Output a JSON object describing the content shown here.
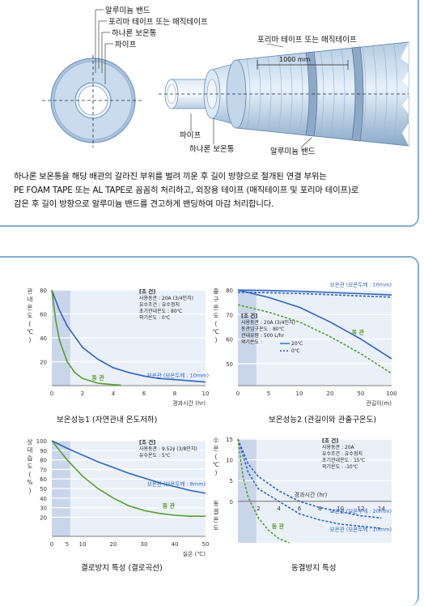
{
  "diagram": {
    "left_labels": [
      "알루미늄 밴드",
      "포리마 테이프 또는 매직테이프",
      "하나론 보온통",
      "파이프"
    ],
    "right_top_label": "포리마 테이프 또는 매직테이프",
    "dimension_label": "1000 mm",
    "right_bottom_labels": {
      "pipe": "파이프",
      "insulation": "하나론 보온통",
      "band": "알루미늄 밴드"
    }
  },
  "description": [
    "하나론 보온통을 해당 배관의 갈라진 부위를 벌려 끼운 후 길이 방향으로 절개된 연결 부위는",
    "PE FOAM TAPE 또는 AL TAPE로 꼼꼼히 처리하고, 외장용 테이프 (매직테이프 및 포리마 테이프)로",
    "감은 후 길이 방향으로 알루미늄 밴드를 견고하게 밴딩하여 마감 처리합니다."
  ],
  "chart_data": [
    {
      "type": "line",
      "title": "보온성능1 (자연관내 온도저하)",
      "ylabel": "관내온도(℃)",
      "xlabel": "경과시간 (hr)",
      "x_ticks": [
        0,
        2,
        4,
        6,
        8,
        10
      ],
      "y_ticks": [
        20,
        40,
        60,
        80
      ],
      "xlim": [
        0,
        10
      ],
      "ylim": [
        0,
        80
      ],
      "conditions": [
        "[조 건]",
        "사용동관 : 20A (3/4인치)",
        "유수조건 : 유수정지",
        "초기관내온도 : 80℃",
        "외기온도 : 0℃"
      ],
      "series": [
        {
          "name": "보온관 (보온두께 : 10mm)",
          "x": [
            0,
            0.5,
            1,
            2,
            3,
            4,
            5,
            6,
            7,
            8,
            9,
            10
          ],
          "y": [
            80,
            63,
            50,
            32,
            22,
            15,
            11,
            8,
            6,
            5,
            4,
            3
          ]
        },
        {
          "name": "동 관",
          "x": [
            0,
            0.25,
            0.5,
            1,
            1.5,
            2,
            3,
            4,
            4.5
          ],
          "y": [
            80,
            55,
            38,
            20,
            11,
            6,
            2,
            0.8,
            0.5
          ]
        }
      ]
    },
    {
      "type": "line",
      "title": "보온성능2 (관길이와 관출구온도)",
      "ylabel": "출구온도(℃)",
      "xlabel": "관길이(m)",
      "x_ticks": [
        0,
        5,
        10,
        20,
        50,
        100
      ],
      "y_ticks": [
        50,
        60,
        70,
        80
      ],
      "ylim": [
        45,
        80
      ],
      "conditions": [
        "[조 건]",
        "사용동관 : 20A (3/4인치)",
        "동관입구온도 : 80℃",
        "관내유량 : 500 L/hr",
        "외기온도 :",
        "20℃",
        "0℃"
      ],
      "series": [
        {
          "name": "보온관 (보온두께 : 10mm)",
          "y": [
            80,
            79.8,
            79.5,
            79,
            78.5,
            78
          ]
        },
        {
          "name": "동 관",
          "y": [
            80,
            77,
            73,
            67,
            60,
            52
          ]
        }
      ]
    },
    {
      "type": "line",
      "title": "결로방지 특성 (결로곡선)",
      "ylabel": "상대습도(%)",
      "xlabel": "실온 (℃)",
      "x_ticks": [
        0,
        5,
        10,
        20,
        30,
        40,
        50
      ],
      "y_ticks": [
        20,
        30,
        40,
        50,
        60,
        70,
        80,
        90,
        100
      ],
      "xlim": [
        0,
        50
      ],
      "ylim": [
        0,
        100
      ],
      "conditions": [
        "[조 건]",
        "사용동관 : 9.52∮ (3/8인치)",
        "유수온도 : 5℃"
      ],
      "series": [
        {
          "name": "보온관 (보온두께 : 8mm)",
          "x": [
            0,
            5,
            10,
            15,
            20,
            25,
            30,
            35,
            40,
            45,
            50
          ],
          "y": [
            100,
            92,
            85,
            78,
            72,
            66,
            61,
            56,
            52,
            48,
            45
          ]
        },
        {
          "name": "동 관",
          "x": [
            0,
            5,
            10,
            15,
            20,
            25,
            30,
            35,
            40,
            45,
            50
          ],
          "y": [
            100,
            80,
            63,
            50,
            40,
            32,
            27,
            24,
            22,
            21,
            21
          ]
        }
      ]
    },
    {
      "type": "line",
      "title": "동결방지 특성",
      "ylabel": "수온(℃)",
      "ylabel2": "동결온도",
      "xlabel": "경과시간 (hr)",
      "x_ticks": [
        2,
        4,
        6,
        8,
        10,
        12,
        14
      ],
      "y_ticks": [
        15,
        10,
        5,
        0
      ],
      "xlim": [
        0,
        15
      ],
      "ylim": [
        -10,
        15
      ],
      "conditions": [
        "[조 건]",
        "사용동관 : 20A",
        "유수조건 : 유수정지",
        "초기관내온도 : 15℃",
        "외기온도 : -10℃"
      ],
      "series": [
        {
          "name": "보온관 (보온두께 : 20mm)",
          "x": [
            0,
            1,
            2,
            4,
            6,
            8,
            10,
            12,
            14
          ],
          "y": [
            15,
            9,
            6,
            2.5,
            0,
            -1.5,
            -2.5,
            -3.5,
            -4
          ]
        },
        {
          "name": "보온관 (보온두께 : 10mm)",
          "x": [
            0,
            1,
            2,
            4,
            6,
            8,
            10,
            12,
            14
          ],
          "y": [
            15,
            7,
            3,
            0,
            -3,
            -4.5,
            -5.5,
            -6,
            -6.5
          ]
        },
        {
          "name": "동 관",
          "x": [
            0,
            0.5,
            1,
            2,
            3,
            4,
            5
          ],
          "y": [
            15,
            6,
            1,
            -4,
            -7,
            -9,
            -10
          ]
        }
      ]
    }
  ]
}
